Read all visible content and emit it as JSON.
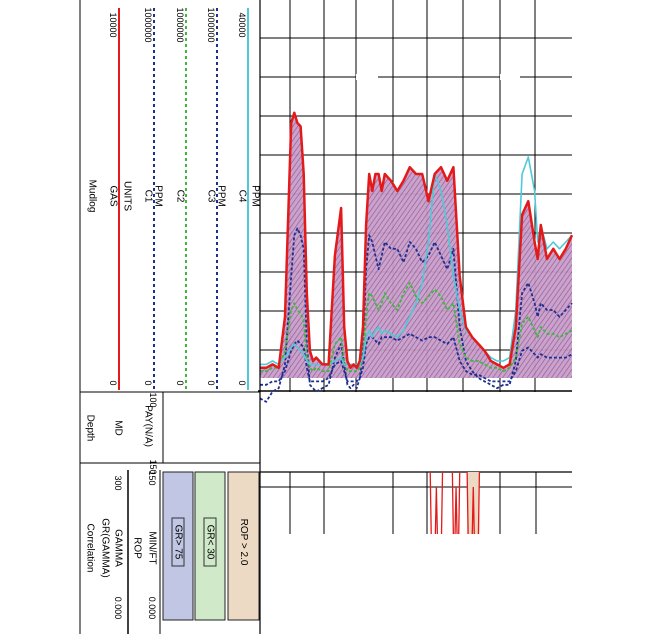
{
  "chart_data": {
    "type": "line",
    "title": "",
    "mudlog": {
      "section_title": "Mudlog",
      "tracks": [
        {
          "name": "GAS",
          "unit": "UNITS",
          "min": "0",
          "max": "10000",
          "color": "#e41a1a",
          "style": "solid"
        },
        {
          "name": "C1",
          "unit": "PPM",
          "min": "0",
          "max": "1000000",
          "color": "#1f2f8f",
          "style": "dashed"
        },
        {
          "name": "C2",
          "unit": "PPM",
          "min": "0",
          "max": "1000000",
          "color": "#3cb83c",
          "style": "dashed"
        },
        {
          "name": "C3",
          "unit": "PPM",
          "min": "0",
          "max": "1000000",
          "color": "#1f2f8f",
          "style": "dashed"
        },
        {
          "name": "C4",
          "unit": "PPM",
          "min": "0",
          "max": "40000",
          "color": "#4fc8d8",
          "style": "solid"
        }
      ]
    },
    "depth": {
      "section_title": "Depth",
      "name": "MD",
      "pay": {
        "name": "PAY(N/A)",
        "min": "100",
        "max": "150"
      }
    },
    "correlation": {
      "section_title": "Correlation",
      "header": "GR(GAMMA)",
      "tracks": [
        {
          "name": "GAMMA",
          "min": "0.000",
          "max": "300",
          "color": "#000000"
        },
        {
          "name": "ROP",
          "unit": "MIN/FT",
          "min": "0.000",
          "max": "150",
          "color": "#000000"
        }
      ],
      "legend": [
        {
          "label": "GR> 75",
          "color": "#c0c6e4"
        },
        {
          "label": "GR< 30",
          "color": "#cfe9c9"
        },
        {
          "label": "ROP > 2.0",
          "color": "#eddac4"
        }
      ]
    },
    "x_positions": [
      0,
      0.02,
      0.04,
      0.06,
      0.08,
      0.1,
      0.11,
      0.12,
      0.13,
      0.14,
      0.15,
      0.16,
      0.17,
      0.18,
      0.2,
      0.22,
      0.24,
      0.26,
      0.27,
      0.28,
      0.29,
      0.3,
      0.31,
      0.32,
      0.33,
      0.34,
      0.35,
      0.36,
      0.37,
      0.38,
      0.39,
      0.4,
      0.42,
      0.44,
      0.46,
      0.48,
      0.5,
      0.52,
      0.54,
      0.56,
      0.58,
      0.6,
      0.62,
      0.64,
      0.66,
      0.68,
      0.7,
      0.72,
      0.74,
      0.76,
      0.78,
      0.8,
      0.82,
      0.84,
      0.86,
      0.88,
      0.89,
      0.9,
      0.92,
      0.94,
      0.96,
      0.98,
      1.0
    ],
    "series": [
      {
        "name": "GAS",
        "values": [
          3,
          3,
          4,
          3,
          18,
          75,
          78,
          75,
          74,
          60,
          25,
          8,
          5,
          6,
          4,
          4,
          36,
          50,
          15,
          5,
          3,
          4,
          3,
          5,
          15,
          45,
          60,
          55,
          60,
          60,
          55,
          60,
          58,
          55,
          58,
          62,
          60,
          60,
          52,
          60,
          62,
          58,
          62,
          30,
          15,
          12,
          10,
          8,
          5,
          4,
          3,
          4,
          15,
          48,
          52,
          40,
          35,
          45,
          35,
          38,
          35,
          38,
          42
        ]
      },
      {
        "name": "C1",
        "values": [
          -6,
          -7,
          -4,
          -3,
          4,
          30,
          42,
          44,
          42,
          38,
          10,
          -2,
          -3,
          -4,
          -3,
          -2,
          6,
          10,
          4,
          -2,
          -3,
          -2,
          -3,
          0,
          8,
          32,
          42,
          40,
          36,
          32,
          36,
          40,
          38,
          38,
          34,
          40,
          38,
          34,
          36,
          40,
          36,
          32,
          38,
          15,
          5,
          2,
          0,
          -1,
          -2,
          -3,
          -2,
          -2,
          5,
          25,
          28,
          22,
          18,
          22,
          20,
          20,
          18,
          20,
          22
        ]
      },
      {
        "name": "C2",
        "values": [
          2,
          2,
          3,
          3,
          8,
          20,
          22,
          20,
          19,
          17,
          6,
          3,
          2,
          3,
          2,
          2,
          10,
          12,
          5,
          2,
          2,
          2,
          2,
          3,
          6,
          18,
          25,
          24,
          22,
          20,
          22,
          25,
          22,
          20,
          25,
          28,
          24,
          22,
          24,
          26,
          24,
          20,
          22,
          10,
          6,
          5,
          5,
          4,
          3,
          3,
          2,
          3,
          6,
          16,
          18,
          14,
          12,
          15,
          13,
          13,
          12,
          13,
          14
        ]
      },
      {
        "name": "C3",
        "values": [
          -2,
          -2,
          -1,
          -1,
          2,
          8,
          10,
          11,
          10,
          9,
          3,
          -1,
          -1,
          -1,
          -1,
          0,
          4,
          5,
          2,
          -1,
          -1,
          -1,
          -1,
          0,
          3,
          10,
          12,
          12,
          11,
          10,
          12,
          12,
          12,
          11,
          12,
          13,
          12,
          11,
          12,
          12,
          11,
          10,
          12,
          5,
          2,
          1,
          1,
          0,
          -1,
          -1,
          -1,
          -1,
          2,
          8,
          9,
          7,
          6,
          7,
          6,
          6,
          6,
          6,
          7
        ]
      },
      {
        "name": "C4",
        "values": [
          4,
          4,
          5,
          4,
          6,
          9,
          10,
          9,
          8,
          7,
          5,
          4,
          4,
          4,
          4,
          4,
          5,
          6,
          4,
          4,
          4,
          4,
          4,
          4,
          6,
          12,
          14,
          12,
          14,
          15,
          13,
          14,
          13,
          12,
          14,
          18,
          22,
          28,
          40,
          60,
          55,
          45,
          30,
          20,
          14,
          12,
          10,
          8,
          6,
          5,
          5,
          6,
          20,
          60,
          65,
          55,
          40,
          45,
          38,
          40,
          38,
          40,
          42
        ]
      }
    ],
    "gamma_spikes": [
      {
        "start": 0.57,
        "end": 0.62
      },
      {
        "start": 0.66,
        "end": 0.69
      },
      {
        "start": 0.72,
        "end": 0.77
      }
    ],
    "grid": true
  }
}
